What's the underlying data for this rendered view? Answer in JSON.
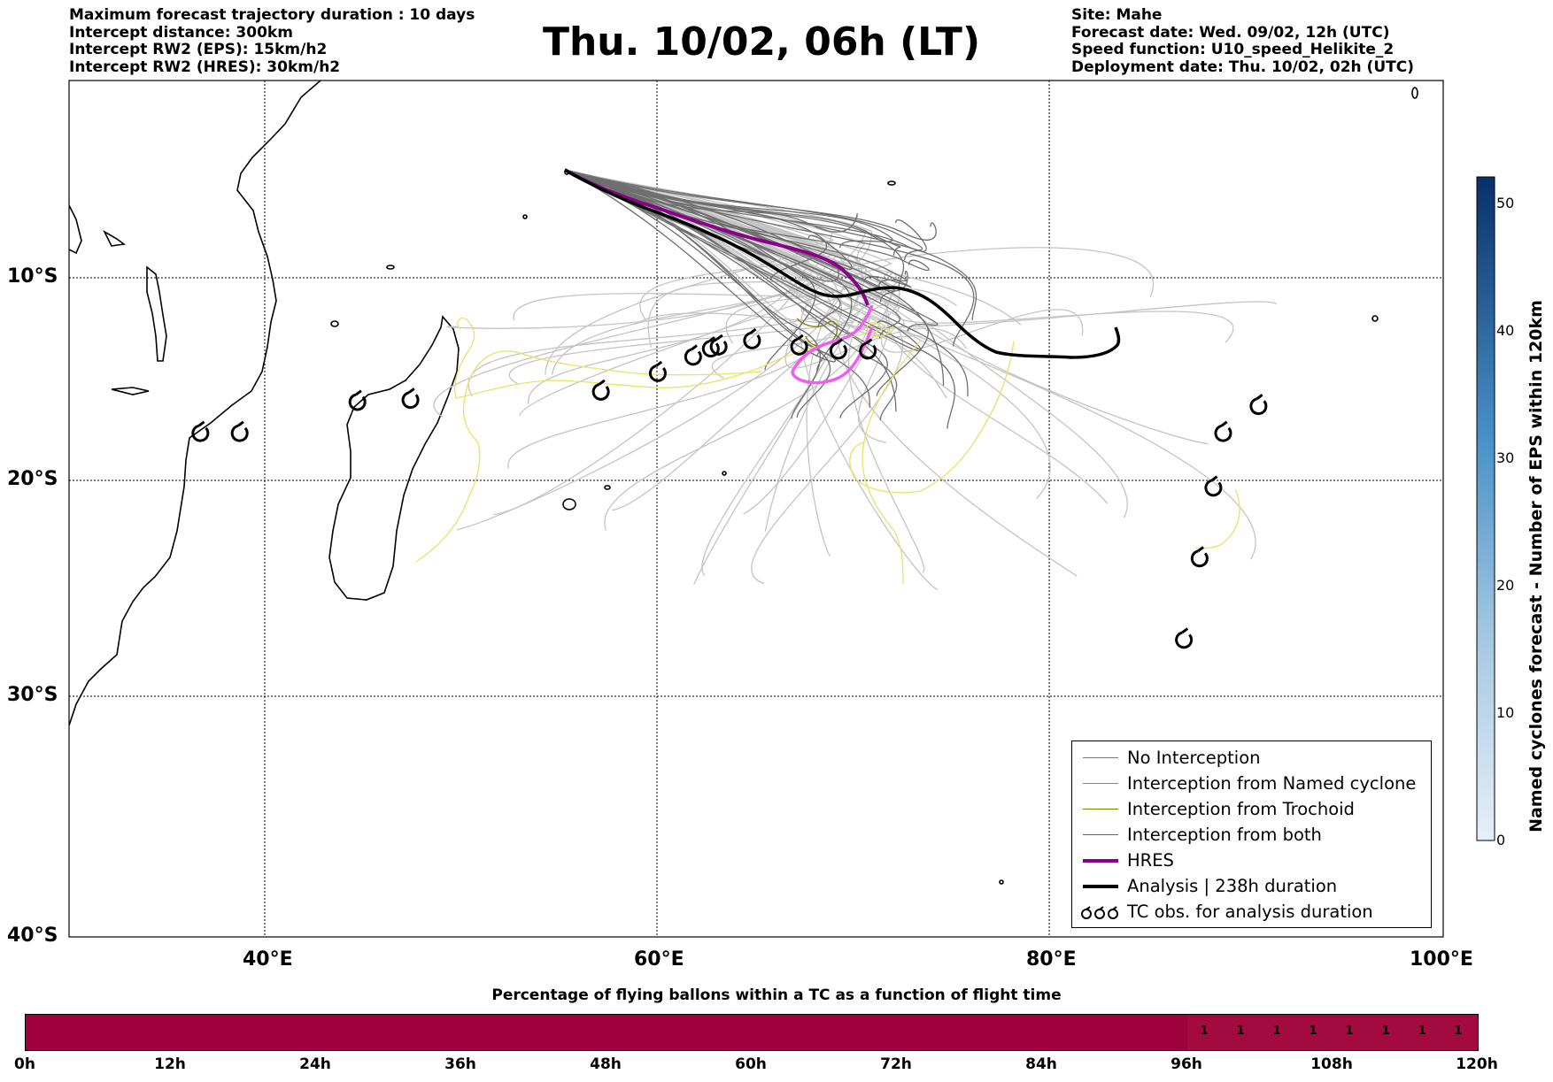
{
  "header": {
    "left_lines": [
      "Maximum forecast trajectory duration : 10 days",
      "Intercept distance: 300km",
      "Intercept RW2 (EPS):  15km/h2",
      "Intercept RW2 (HRES): 30km/h2"
    ],
    "title": "Thu. 10/02, 06h (LT)",
    "right_lines": [
      "Site: Mahe",
      "Forecast date: Wed. 09/02, 12h (UTC)",
      "Speed function: U10_speed_Helikite_2",
      "Deployment date: Thu. 10/02, 02h (UTC)"
    ]
  },
  "map": {
    "lon_range": [
      30,
      100
    ],
    "lat_range": [
      -40,
      -0.5
    ],
    "lat_labels": [
      "10°S",
      "20°S",
      "30°S",
      "40°S"
    ],
    "lon_labels": [
      "40°E",
      "60°E",
      "80°E",
      "100°E"
    ],
    "tc_obs_positions": [
      {
        "lon": 36.7,
        "lat": -18.0
      },
      {
        "lon": 38.7,
        "lat": -18.0
      },
      {
        "lon": 44.7,
        "lat": -16.5
      },
      {
        "lon": 47.4,
        "lat": -16.4
      },
      {
        "lon": 57.1,
        "lat": -16.0
      },
      {
        "lon": 60.0,
        "lat": -15.1
      },
      {
        "lon": 61.8,
        "lat": -14.3
      },
      {
        "lon": 62.7,
        "lat": -13.9
      },
      {
        "lon": 63.1,
        "lat": -13.8
      },
      {
        "lon": 64.8,
        "lat": -13.5
      },
      {
        "lon": 67.2,
        "lat": -13.8
      },
      {
        "lon": 69.2,
        "lat": -14.0
      },
      {
        "lon": 70.7,
        "lat": -14.0
      },
      {
        "lon": 88.8,
        "lat": -18.0
      },
      {
        "lon": 90.6,
        "lat": -16.7
      },
      {
        "lon": 88.3,
        "lat": -20.6
      },
      {
        "lon": 87.6,
        "lat": -23.9
      },
      {
        "lon": 86.8,
        "lat": -27.6
      }
    ]
  },
  "colorbar": {
    "label": "Named cyclones forecast - Number of EPS within 120km",
    "ticks": [
      "0",
      "10",
      "20",
      "30",
      "40",
      "50"
    ],
    "range": [
      0,
      52
    ],
    "color_low": "#e6eff8",
    "color_high": "#08306b"
  },
  "legend": {
    "items": [
      {
        "label": "No Interception",
        "color": "#777777",
        "width": 1.3
      },
      {
        "label": "Interception from Named cyclone",
        "color": "#ff5a1f",
        "width": 1.3
      },
      {
        "label": "Interception from Trochoid",
        "color": "#808000",
        "width": 1.3
      },
      {
        "label": "Interception from both",
        "color": "#129a12",
        "width": 1.3
      },
      {
        "label": "HRES",
        "color": "#8b008b",
        "width": 4
      },
      {
        "label": "Analysis | 238h duration",
        "color": "#000000",
        "width": 4
      },
      {
        "label": "TC obs. for analysis duration",
        "color": "#000000",
        "width": 0
      }
    ]
  },
  "timebar": {
    "title": "Percentage of flying ballons within a TC as a function of flight time",
    "color": "#a0003c",
    "time_labels": [
      "0h",
      "12h",
      "24h",
      "36h",
      "48h",
      "60h",
      "72h",
      "84h",
      "96h",
      "108h",
      "120h"
    ],
    "percent_values": [
      "1",
      "1",
      "1",
      "1",
      "1",
      "1",
      "1",
      "1"
    ]
  }
}
